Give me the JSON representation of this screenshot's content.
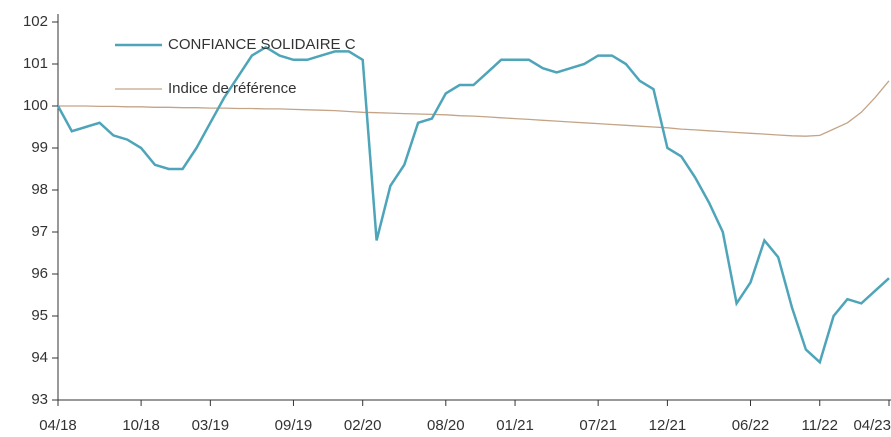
{
  "chart_data": {
    "type": "line",
    "x": [
      "2018-04",
      "2018-05",
      "2018-06",
      "2018-07",
      "2018-08",
      "2018-09",
      "2018-10",
      "2018-11",
      "2018-12",
      "2019-01",
      "2019-02",
      "2019-03",
      "2019-04",
      "2019-05",
      "2019-06",
      "2019-07",
      "2019-08",
      "2019-09",
      "2019-10",
      "2019-11",
      "2019-12",
      "2020-01",
      "2020-02",
      "2020-03",
      "2020-04",
      "2020-05",
      "2020-06",
      "2020-07",
      "2020-08",
      "2020-09",
      "2020-10",
      "2020-11",
      "2020-12",
      "2021-01",
      "2021-02",
      "2021-03",
      "2021-04",
      "2021-05",
      "2021-06",
      "2021-07",
      "2021-08",
      "2021-09",
      "2021-10",
      "2021-11",
      "2021-12",
      "2022-01",
      "2022-02",
      "2022-03",
      "2022-04",
      "2022-05",
      "2022-06",
      "2022-07",
      "2022-08",
      "2022-09",
      "2022-10",
      "2022-11",
      "2022-12",
      "2023-01",
      "2023-02",
      "2023-03",
      "2023-04"
    ],
    "series": [
      {
        "name": "CONFIANCE SOLIDAIRE C",
        "color": "#4ea5b9",
        "values": [
          100.0,
          99.4,
          99.5,
          99.6,
          99.3,
          99.2,
          99.0,
          98.6,
          98.5,
          98.5,
          99.0,
          99.6,
          100.2,
          100.7,
          101.2,
          101.4,
          101.2,
          101.1,
          101.1,
          101.2,
          101.3,
          101.3,
          101.1,
          96.8,
          98.1,
          98.6,
          99.6,
          99.7,
          100.3,
          100.5,
          100.5,
          100.8,
          101.1,
          101.1,
          101.1,
          100.9,
          100.8,
          100.9,
          101.0,
          101.2,
          101.2,
          101.0,
          100.6,
          100.4,
          99.0,
          98.8,
          98.3,
          97.7,
          97.0,
          95.3,
          95.8,
          96.8,
          96.4,
          95.2,
          94.2,
          93.9,
          95.0,
          95.4,
          95.3,
          95.6,
          95.9
        ]
      },
      {
        "name": "Indice de référence",
        "color": "#c4a487",
        "values": [
          100.0,
          100.0,
          100.0,
          99.99,
          99.99,
          99.98,
          99.98,
          99.97,
          99.97,
          99.96,
          99.96,
          99.95,
          99.95,
          99.94,
          99.94,
          99.93,
          99.93,
          99.92,
          99.91,
          99.9,
          99.89,
          99.87,
          99.85,
          99.84,
          99.83,
          99.82,
          99.81,
          99.8,
          99.79,
          99.77,
          99.76,
          99.74,
          99.72,
          99.7,
          99.68,
          99.66,
          99.64,
          99.62,
          99.6,
          99.58,
          99.56,
          99.54,
          99.52,
          99.5,
          99.48,
          99.45,
          99.43,
          99.41,
          99.39,
          99.37,
          99.35,
          99.33,
          99.31,
          99.29,
          99.28,
          99.3,
          99.45,
          99.6,
          99.85,
          100.2,
          100.6
        ]
      }
    ],
    "xticks": [
      {
        "value": "2018-04",
        "label": "04/18"
      },
      {
        "value": "2018-10",
        "label": "10/18"
      },
      {
        "value": "2019-03",
        "label": "03/19"
      },
      {
        "value": "2019-09",
        "label": "09/19"
      },
      {
        "value": "2020-02",
        "label": "02/20"
      },
      {
        "value": "2020-08",
        "label": "08/20"
      },
      {
        "value": "2021-01",
        "label": "01/21"
      },
      {
        "value": "2021-07",
        "label": "07/21"
      },
      {
        "value": "2021-12",
        "label": "12/21"
      },
      {
        "value": "2022-06",
        "label": "06/22"
      },
      {
        "value": "2022-11",
        "label": "11/22"
      },
      {
        "value": "2023-04",
        "label": "04/23"
      }
    ],
    "ylim": [
      93,
      102
    ],
    "yticks": [
      93,
      94,
      95,
      96,
      97,
      98,
      99,
      100,
      101,
      102
    ]
  }
}
